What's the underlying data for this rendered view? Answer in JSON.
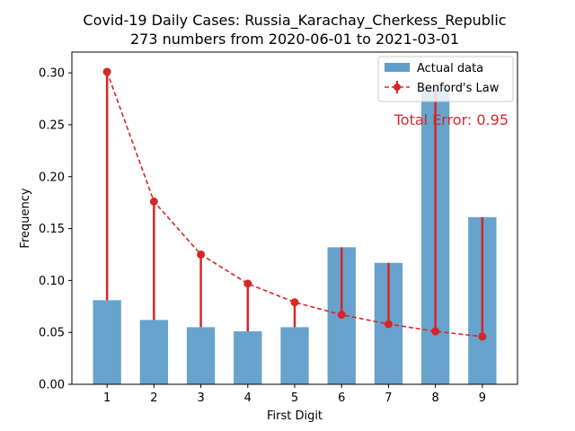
{
  "chart_data": {
    "type": "bar",
    "title": "Covid-19 Daily Cases: Russia_Karachay_Cherkess_Republic",
    "subtitle": "273 numbers from 2020-06-01 to 2021-03-01",
    "xlabel": "First Digit",
    "ylabel": "Frequency",
    "categories": [
      "1",
      "2",
      "3",
      "4",
      "5",
      "6",
      "7",
      "8",
      "9"
    ],
    "ylim": [
      0,
      0.32
    ],
    "yticks": [
      "0.00",
      "0.05",
      "0.10",
      "0.15",
      "0.20",
      "0.25",
      "0.30"
    ],
    "ytick_values": [
      0,
      0.05,
      0.1,
      0.15,
      0.2,
      0.25,
      0.3
    ],
    "series": [
      {
        "name": "Actual data",
        "kind": "bar",
        "color": "#5f9ec9",
        "values": [
          0.081,
          0.062,
          0.055,
          0.051,
          0.055,
          0.132,
          0.117,
          0.286,
          0.161
        ]
      },
      {
        "name": "Benford's Law",
        "kind": "line",
        "color": "#d62728",
        "values": [
          0.301,
          0.176,
          0.125,
          0.097,
          0.079,
          0.067,
          0.058,
          0.051,
          0.046
        ]
      }
    ],
    "annotation": "Total Error: 0.95",
    "annotation_color": "#d62728",
    "legend_placement": "top-right",
    "grid": false
  }
}
